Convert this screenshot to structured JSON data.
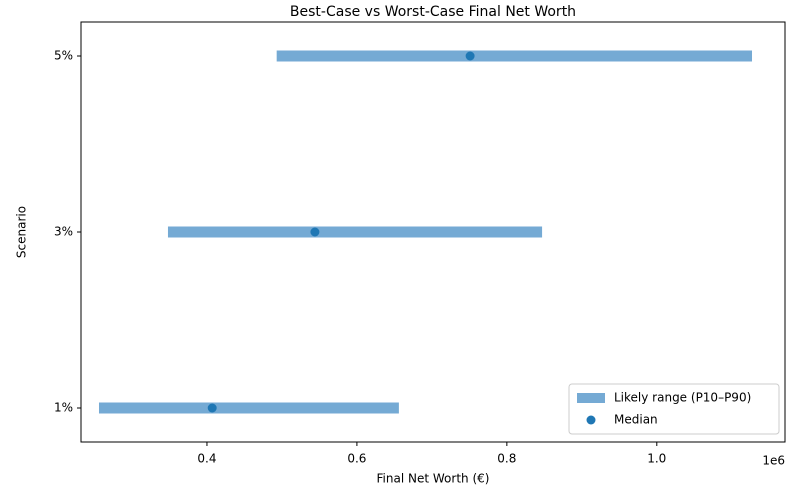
{
  "chart_data": {
    "type": "range",
    "title": "Best-Case vs Worst-Case Final Net Worth",
    "x_label": "Final Net Worth (€)",
    "y_label": "Scenario",
    "x_offset_label": "1e6",
    "categories": [
      "1%",
      "3%",
      "5%"
    ],
    "series": [
      {
        "name": "Likely range (P10–P90)",
        "color": "#75aad4",
        "low": [
          0.256,
          0.348,
          0.493
        ],
        "high": [
          0.656,
          0.847,
          1.127
        ]
      },
      {
        "name": "Median",
        "color": "#1f77b4",
        "values": [
          0.407,
          0.544,
          0.751
        ]
      }
    ],
    "xlim": [
      0.232,
      1.171
    ],
    "xticks": [
      0.4,
      0.6,
      0.8,
      {
        "value": 1,
        "label": "1.0"
      }
    ],
    "legend": "lower right",
    "grid": false
  }
}
